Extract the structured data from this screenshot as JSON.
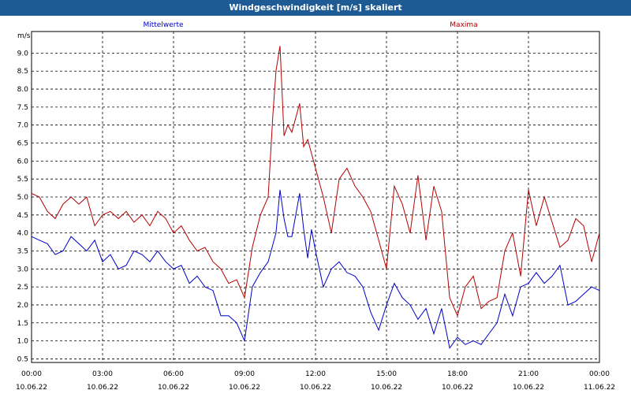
{
  "window": {
    "title": "Windgeschwindigkeit [m/s] skaliert"
  },
  "chart_data": {
    "type": "line",
    "title": "Windgeschwindigkeit [m/s] skaliert",
    "ylabel": "m/s",
    "xlabel": "",
    "ylim": [
      0.4,
      9.6
    ],
    "xlim": [
      0,
      24
    ],
    "grid": true,
    "legend_position": "top",
    "yticks": [
      "0.5",
      "1.0",
      "1.5",
      "2.0",
      "2.5",
      "3.0",
      "3.5",
      "4.0",
      "4.5",
      "5.0",
      "5.5",
      "6.0",
      "6.5",
      "7.0",
      "7.5",
      "8.0",
      "8.5",
      "9.0"
    ],
    "xticks": [
      {
        "time": "00:00",
        "date": "10.06.22"
      },
      {
        "time": "03:00",
        "date": "10.06.22"
      },
      {
        "time": "06:00",
        "date": "10.06.22"
      },
      {
        "time": "09:00",
        "date": "10.06.22"
      },
      {
        "time": "12:00",
        "date": "10.06.22"
      },
      {
        "time": "15:00",
        "date": "10.06.22"
      },
      {
        "time": "18:00",
        "date": "10.06.22"
      },
      {
        "time": "21:00",
        "date": "10.06.22"
      },
      {
        "time": "00:00",
        "date": "11.06.22"
      }
    ],
    "series": [
      {
        "name": "Mittelwerte",
        "color": "#0000c8",
        "points": [
          [
            0,
            3.9
          ],
          [
            0.33,
            3.8
          ],
          [
            0.67,
            3.7
          ],
          [
            1.0,
            3.4
          ],
          [
            1.33,
            3.5
          ],
          [
            1.67,
            3.9
          ],
          [
            2.0,
            3.7
          ],
          [
            2.33,
            3.5
          ],
          [
            2.67,
            3.8
          ],
          [
            3.0,
            3.2
          ],
          [
            3.33,
            3.4
          ],
          [
            3.67,
            3.0
          ],
          [
            4.0,
            3.1
          ],
          [
            4.33,
            3.5
          ],
          [
            4.67,
            3.4
          ],
          [
            5.0,
            3.2
          ],
          [
            5.33,
            3.5
          ],
          [
            5.67,
            3.2
          ],
          [
            6.0,
            3.0
          ],
          [
            6.33,
            3.1
          ],
          [
            6.67,
            2.6
          ],
          [
            7.0,
            2.8
          ],
          [
            7.33,
            2.5
          ],
          [
            7.67,
            2.4
          ],
          [
            8.0,
            1.7
          ],
          [
            8.33,
            1.7
          ],
          [
            8.67,
            1.5
          ],
          [
            9.0,
            1.0
          ],
          [
            9.33,
            2.5
          ],
          [
            9.67,
            2.9
          ],
          [
            10.0,
            3.2
          ],
          [
            10.33,
            4.0
          ],
          [
            10.5,
            5.2
          ],
          [
            10.67,
            4.4
          ],
          [
            10.83,
            3.9
          ],
          [
            11.0,
            3.9
          ],
          [
            11.33,
            5.1
          ],
          [
            11.5,
            4.1
          ],
          [
            11.67,
            3.3
          ],
          [
            11.83,
            4.1
          ],
          [
            12.0,
            3.5
          ],
          [
            12.33,
            2.5
          ],
          [
            12.67,
            3.0
          ],
          [
            13.0,
            3.2
          ],
          [
            13.33,
            2.9
          ],
          [
            13.67,
            2.8
          ],
          [
            14.0,
            2.5
          ],
          [
            14.33,
            1.8
          ],
          [
            14.67,
            1.3
          ],
          [
            15.0,
            2.0
          ],
          [
            15.33,
            2.6
          ],
          [
            15.67,
            2.2
          ],
          [
            16.0,
            2.0
          ],
          [
            16.33,
            1.6
          ],
          [
            16.67,
            1.9
          ],
          [
            17.0,
            1.2
          ],
          [
            17.33,
            1.9
          ],
          [
            17.67,
            0.8
          ],
          [
            18.0,
            1.1
          ],
          [
            18.33,
            0.9
          ],
          [
            18.67,
            1.0
          ],
          [
            19.0,
            0.9
          ],
          [
            19.33,
            1.2
          ],
          [
            19.67,
            1.5
          ],
          [
            20.0,
            2.3
          ],
          [
            20.33,
            1.7
          ],
          [
            20.67,
            2.5
          ],
          [
            21.0,
            2.6
          ],
          [
            21.33,
            2.9
          ],
          [
            21.67,
            2.6
          ],
          [
            22.0,
            2.8
          ],
          [
            22.33,
            3.1
          ],
          [
            22.67,
            2.0
          ],
          [
            23.0,
            2.1
          ],
          [
            23.33,
            2.3
          ],
          [
            23.67,
            2.5
          ],
          [
            24.0,
            2.4
          ]
        ]
      },
      {
        "name": "Maxima",
        "color": "#b40000",
        "points": [
          [
            0,
            5.1
          ],
          [
            0.33,
            5.0
          ],
          [
            0.67,
            4.6
          ],
          [
            1.0,
            4.4
          ],
          [
            1.33,
            4.8
          ],
          [
            1.67,
            5.0
          ],
          [
            2.0,
            4.8
          ],
          [
            2.33,
            5.0
          ],
          [
            2.67,
            4.2
          ],
          [
            3.0,
            4.5
          ],
          [
            3.33,
            4.6
          ],
          [
            3.67,
            4.4
          ],
          [
            4.0,
            4.6
          ],
          [
            4.33,
            4.3
          ],
          [
            4.67,
            4.5
          ],
          [
            5.0,
            4.2
          ],
          [
            5.33,
            4.6
          ],
          [
            5.67,
            4.4
          ],
          [
            6.0,
            4.0
          ],
          [
            6.33,
            4.2
          ],
          [
            6.67,
            3.8
          ],
          [
            7.0,
            3.5
          ],
          [
            7.33,
            3.6
          ],
          [
            7.67,
            3.2
          ],
          [
            8.0,
            3.0
          ],
          [
            8.33,
            2.6
          ],
          [
            8.67,
            2.7
          ],
          [
            9.0,
            2.2
          ],
          [
            9.33,
            3.6
          ],
          [
            9.67,
            4.5
          ],
          [
            10.0,
            5.0
          ],
          [
            10.2,
            7.3
          ],
          [
            10.33,
            8.5
          ],
          [
            10.5,
            9.2
          ],
          [
            10.67,
            6.7
          ],
          [
            10.83,
            7.0
          ],
          [
            11.0,
            6.8
          ],
          [
            11.33,
            7.6
          ],
          [
            11.5,
            6.4
          ],
          [
            11.67,
            6.6
          ],
          [
            12.0,
            5.8
          ],
          [
            12.33,
            5.0
          ],
          [
            12.67,
            4.0
          ],
          [
            13.0,
            5.5
          ],
          [
            13.33,
            5.8
          ],
          [
            13.67,
            5.3
          ],
          [
            14.0,
            5.0
          ],
          [
            14.33,
            4.6
          ],
          [
            14.67,
            3.8
          ],
          [
            15.0,
            3.0
          ],
          [
            15.33,
            5.3
          ],
          [
            15.67,
            4.8
          ],
          [
            16.0,
            4.0
          ],
          [
            16.33,
            5.6
          ],
          [
            16.67,
            3.8
          ],
          [
            17.0,
            5.3
          ],
          [
            17.33,
            4.6
          ],
          [
            17.67,
            2.2
          ],
          [
            18.0,
            1.7
          ],
          [
            18.33,
            2.5
          ],
          [
            18.67,
            2.8
          ],
          [
            19.0,
            1.9
          ],
          [
            19.33,
            2.1
          ],
          [
            19.67,
            2.2
          ],
          [
            20.0,
            3.5
          ],
          [
            20.33,
            4.0
          ],
          [
            20.67,
            2.8
          ],
          [
            21.0,
            5.2
          ],
          [
            21.33,
            4.2
          ],
          [
            21.67,
            5.0
          ],
          [
            22.0,
            4.3
          ],
          [
            22.33,
            3.6
          ],
          [
            22.67,
            3.8
          ],
          [
            23.0,
            4.4
          ],
          [
            23.33,
            4.2
          ],
          [
            23.67,
            3.2
          ],
          [
            24.0,
            4.0
          ]
        ]
      }
    ]
  }
}
